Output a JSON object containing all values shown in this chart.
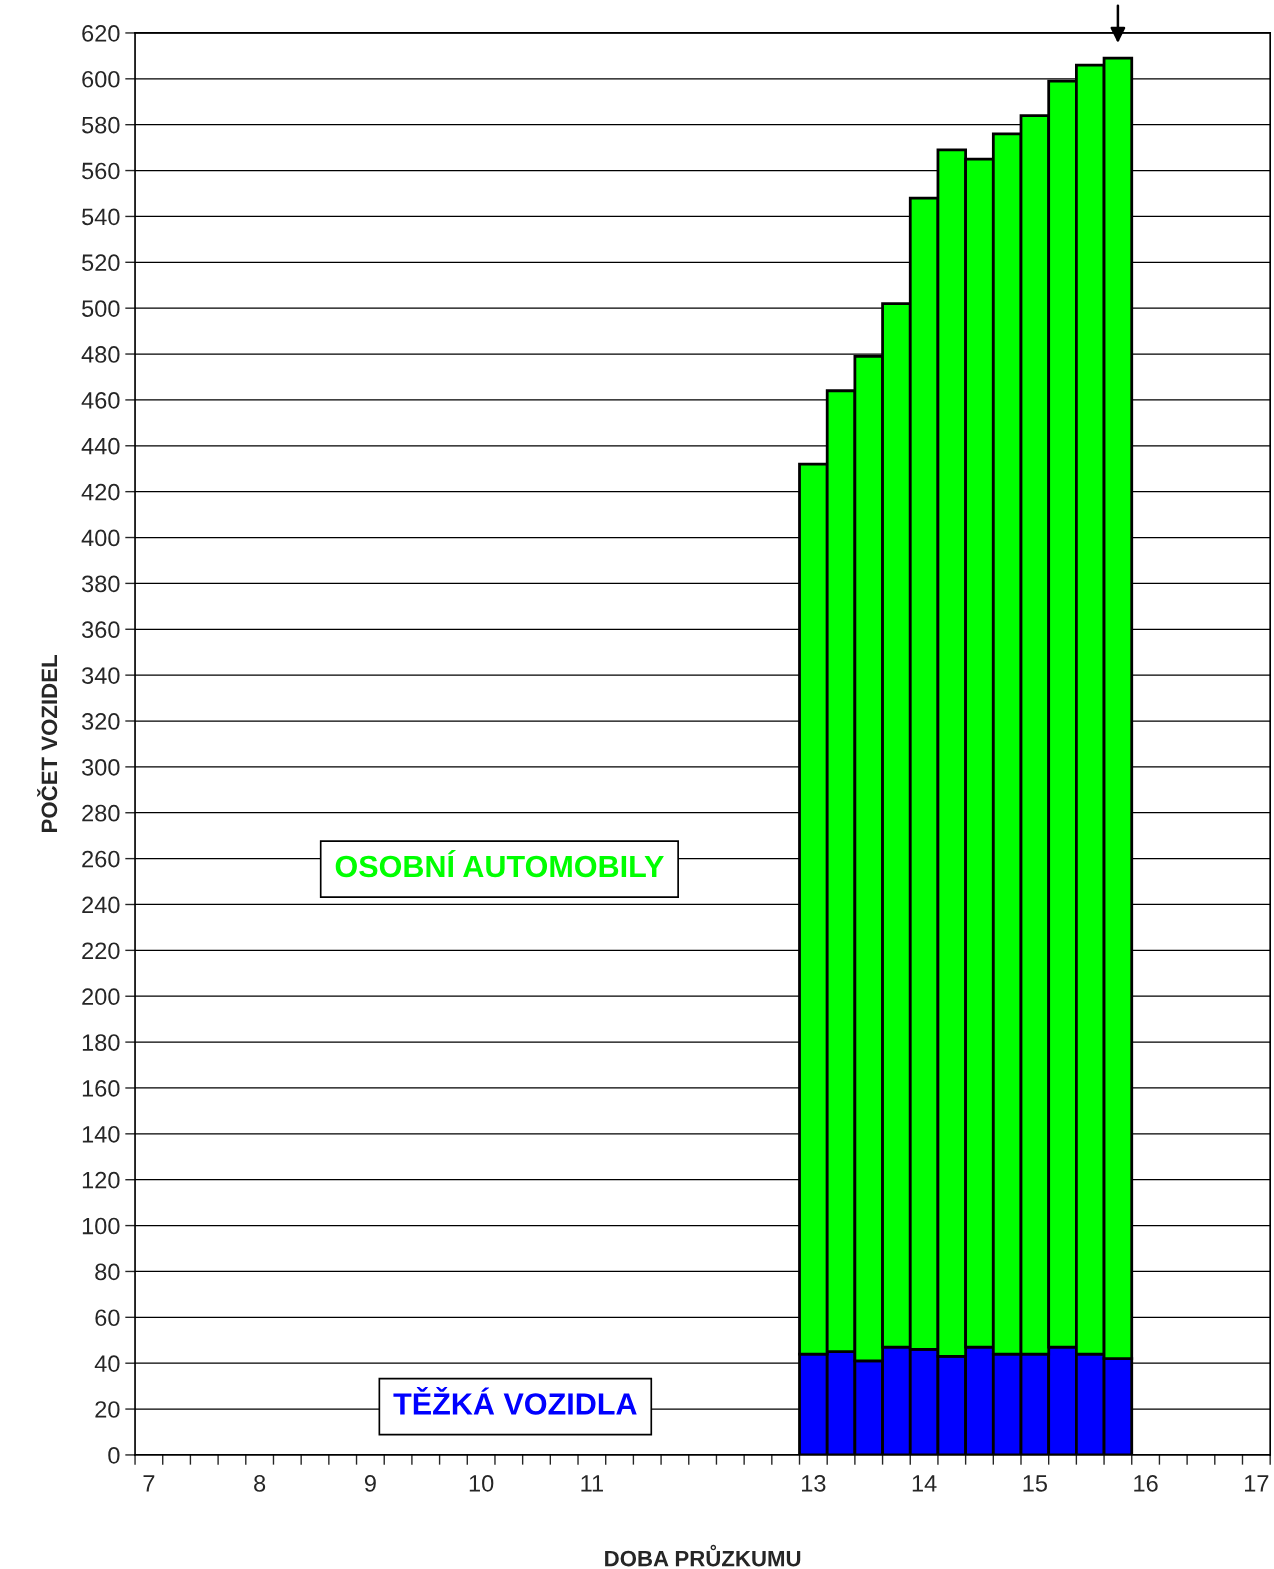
{
  "chart_data": {
    "type": "bar",
    "stacked": true,
    "xlabel": "DOBA PRŮZKUMU",
    "ylabel": "POČET VOZIDEL",
    "categories": [
      "7",
      null,
      null,
      null,
      "8",
      null,
      null,
      null,
      "9",
      null,
      null,
      null,
      "10",
      null,
      null,
      null,
      "11",
      null,
      null,
      null,
      null,
      null,
      null,
      null,
      "13",
      null,
      null,
      null,
      "14",
      null,
      null,
      null,
      "15",
      null,
      null,
      null,
      "16",
      null,
      null,
      null,
      "17"
    ],
    "series": [
      {
        "name": "TĚŽKÁ VOZIDLA",
        "color": "#0000ff",
        "values": [
          null,
          null,
          null,
          null,
          null,
          null,
          null,
          null,
          null,
          null,
          null,
          null,
          null,
          null,
          null,
          null,
          null,
          null,
          null,
          null,
          null,
          null,
          null,
          null,
          44,
          45,
          41,
          47,
          46,
          43,
          47,
          44,
          44,
          47,
          44,
          42,
          null,
          null,
          null,
          null,
          null
        ]
      },
      {
        "name": "OSOBNÍ AUTOMOBILY",
        "color": "#00ff00",
        "values": [
          null,
          null,
          null,
          null,
          null,
          null,
          null,
          null,
          null,
          null,
          null,
          null,
          null,
          null,
          null,
          null,
          null,
          null,
          null,
          null,
          null,
          null,
          null,
          null,
          388,
          419,
          438,
          455,
          502,
          526,
          518,
          532,
          540,
          552,
          562,
          567,
          null,
          null,
          null,
          null,
          null
        ]
      }
    ],
    "ylim": [
      0,
      620
    ],
    "yticks": [
      0,
      20,
      40,
      60,
      80,
      100,
      120,
      140,
      160,
      180,
      200,
      220,
      240,
      260,
      280,
      300,
      320,
      340,
      360,
      380,
      400,
      420,
      440,
      460,
      480,
      500,
      520,
      540,
      560,
      580,
      600,
      620
    ],
    "grid": "y"
  }
}
